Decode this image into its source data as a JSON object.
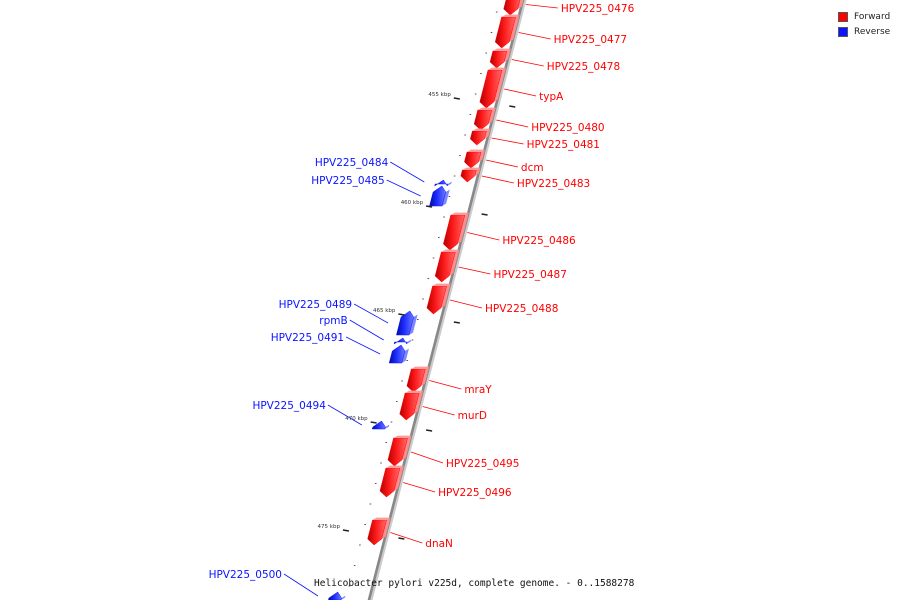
{
  "colors": {
    "forward": "#ff0000",
    "reverse": "#0a14ff",
    "backbone": "#888888",
    "tick": "#222222"
  },
  "legend": {
    "forward_label": "Forward",
    "reverse_label": "Reverse"
  },
  "caption": "Helicobacter pylori v225d, complete genome. - 0..1588278",
  "kbp_marks": [
    "455 kbp",
    "460 kbp",
    "465 kbp",
    "470 kbp",
    "475 kbp"
  ],
  "forward_genes": [
    "HPV225_0476",
    "HPV225_0477",
    "HPV225_0478",
    "typA",
    "HPV225_0480",
    "HPV225_0481",
    "dcm",
    "HPV225_0483",
    "HPV225_0486",
    "HPV225_0487",
    "HPV225_0488",
    "mraY",
    "murD",
    "HPV225_0495",
    "HPV225_0496",
    "dnaN"
  ],
  "reverse_genes": [
    "HPV225_0484",
    "HPV225_0485",
    "HPV225_0489",
    "rpmB",
    "HPV225_0491",
    "HPV225_0494",
    "HPV225_0500"
  ]
}
